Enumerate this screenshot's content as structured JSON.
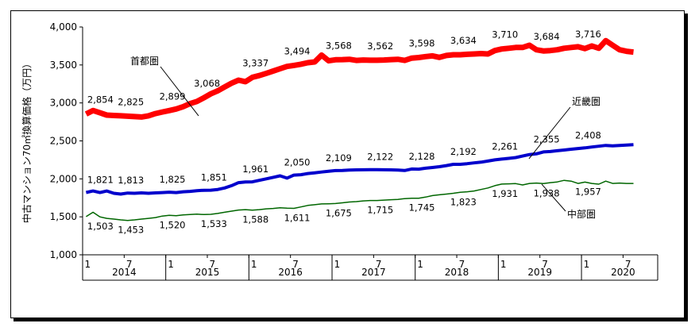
{
  "chart_data": {
    "type": "line",
    "ylabel": "中古マンション70㎡換算価格（万円）",
    "ylim": [
      1000,
      4000
    ],
    "y_ticks": [
      "1,000",
      "1,500",
      "2,000",
      "2,500",
      "3,000",
      "3,500",
      "4,000"
    ],
    "x_month_ticks": [
      "1",
      "7",
      "1",
      "7",
      "1",
      "7",
      "1",
      "7",
      "1",
      "7",
      "1",
      "7",
      "1",
      "7"
    ],
    "x_years": [
      "2014",
      "2015",
      "2016",
      "2017",
      "2018",
      "2019",
      "2020"
    ],
    "grid": false,
    "series": [
      {
        "name": "首都圏",
        "color": "#ff0000",
        "values": [
          2854,
          2900,
          2870,
          2840,
          2835,
          2830,
          2825,
          2820,
          2815,
          2830,
          2860,
          2880,
          2899,
          2920,
          2950,
          2990,
          3020,
          3068,
          3120,
          3160,
          3210,
          3260,
          3300,
          3280,
          3337,
          3360,
          3390,
          3420,
          3450,
          3480,
          3494,
          3510,
          3530,
          3540,
          3630,
          3555,
          3568,
          3570,
          3575,
          3560,
          3565,
          3562,
          3562,
          3565,
          3570,
          3575,
          3560,
          3590,
          3598,
          3610,
          3620,
          3600,
          3625,
          3634,
          3634,
          3640,
          3645,
          3650,
          3645,
          3690,
          3710,
          3720,
          3730,
          3730,
          3760,
          3700,
          3684,
          3690,
          3700,
          3720,
          3730,
          3740,
          3716,
          3750,
          3720,
          3820,
          3760,
          3700,
          3680,
          3670
        ],
        "labels": [
          "2,854",
          "2,825",
          "2,899",
          "3,068",
          "3,337",
          "3,494",
          "3,568",
          "3,562",
          "3,598",
          "3,634",
          "3,710",
          "3,684",
          "3,716"
        ],
        "label_idx": [
          0,
          6,
          12,
          17,
          24,
          30,
          36,
          42,
          48,
          54,
          60,
          66,
          72
        ]
      },
      {
        "name": "近畿圏",
        "color": "#0000cc",
        "values": [
          1821,
          1840,
          1820,
          1840,
          1810,
          1800,
          1813,
          1810,
          1815,
          1810,
          1815,
          1820,
          1825,
          1820,
          1830,
          1835,
          1845,
          1850,
          1851,
          1860,
          1880,
          1910,
          1950,
          1960,
          1961,
          1980,
          2000,
          2020,
          2040,
          2010,
          2050,
          2055,
          2070,
          2080,
          2090,
          2100,
          2109,
          2110,
          2115,
          2118,
          2120,
          2122,
          2122,
          2120,
          2118,
          2115,
          2110,
          2130,
          2128,
          2140,
          2150,
          2160,
          2175,
          2192,
          2192,
          2200,
          2210,
          2220,
          2235,
          2250,
          2261,
          2270,
          2280,
          2300,
          2320,
          2330,
          2355,
          2360,
          2370,
          2380,
          2390,
          2400,
          2408,
          2420,
          2430,
          2440,
          2435,
          2440,
          2445,
          2450
        ],
        "labels": [
          "1,821",
          "1,813",
          "1,825",
          "1,851",
          "1,961",
          "2,050",
          "2,109",
          "2,122",
          "2,128",
          "2,192",
          "2,261",
          "2,355",
          "2,408"
        ],
        "label_idx": [
          0,
          6,
          12,
          18,
          24,
          30,
          36,
          42,
          48,
          54,
          60,
          66,
          72
        ]
      },
      {
        "name": "中部圏",
        "color": "#006600",
        "values": [
          1503,
          1560,
          1500,
          1480,
          1470,
          1460,
          1453,
          1460,
          1470,
          1480,
          1490,
          1510,
          1520,
          1515,
          1525,
          1530,
          1535,
          1530,
          1533,
          1545,
          1560,
          1575,
          1590,
          1595,
          1588,
          1595,
          1605,
          1610,
          1620,
          1615,
          1611,
          1630,
          1650,
          1660,
          1670,
          1672,
          1675,
          1685,
          1695,
          1700,
          1710,
          1715,
          1715,
          1720,
          1725,
          1730,
          1740,
          1745,
          1745,
          1760,
          1780,
          1790,
          1800,
          1810,
          1823,
          1830,
          1840,
          1860,
          1880,
          1910,
          1931,
          1935,
          1938,
          1920,
          1940,
          1945,
          1938,
          1950,
          1960,
          1980,
          1970,
          1940,
          1957,
          1940,
          1930,
          1970,
          1940,
          1945,
          1940,
          1940
        ],
        "labels": [
          "1,503",
          "1,453",
          "1,520",
          "1,533",
          "1,588",
          "1,611",
          "1,675",
          "1,715",
          "1,745",
          "1,823",
          "1,931",
          "1,938",
          "1,957"
        ],
        "label_idx": [
          0,
          6,
          12,
          18,
          24,
          30,
          36,
          42,
          48,
          54,
          60,
          66,
          72
        ]
      }
    ]
  }
}
